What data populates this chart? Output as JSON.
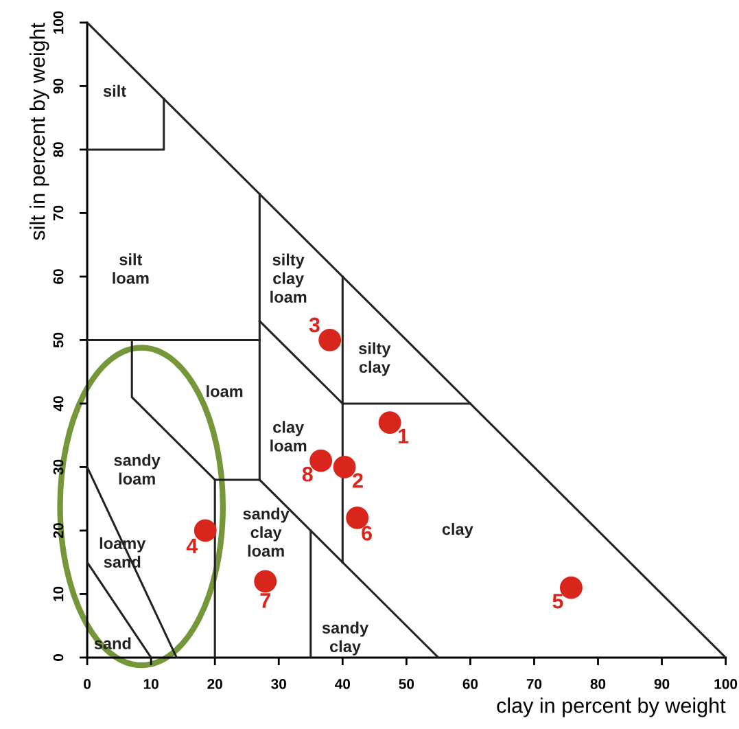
{
  "chart_data": {
    "type": "scatter",
    "xlabel": "clay in percent by weight",
    "ylabel": "silt in percent by weight",
    "xlim": [
      0,
      100
    ],
    "ylim": [
      0,
      100
    ],
    "xticks": [
      0,
      10,
      20,
      30,
      40,
      50,
      60,
      70,
      80,
      90,
      100
    ],
    "yticks": [
      0,
      10,
      20,
      30,
      40,
      50,
      60,
      70,
      80,
      90,
      100
    ],
    "grid": false,
    "legend": false,
    "marker": "circle",
    "series": [
      {
        "color": "#d9261c",
        "x": [
          47.4,
          40.3,
          38,
          18.5,
          75.8,
          42.3,
          27.9,
          36.6
        ],
        "values": [
          37,
          30,
          50,
          20,
          11,
          22,
          12,
          31
        ]
      },
      {
        "type": "line",
        "marker": "none",
        "color": "#222222",
        "x": [
          0,
          100
        ],
        "values": [
          100,
          0
        ]
      },
      {
        "type": "line",
        "marker": "none",
        "color": "#222222",
        "x": [
          0,
          12,
          12
        ],
        "values": [
          80,
          80,
          88
        ]
      },
      {
        "type": "line",
        "marker": "none",
        "color": "#222222",
        "x": [
          0,
          27
        ],
        "values": [
          50,
          50
        ]
      },
      {
        "type": "line",
        "marker": "none",
        "color": "#222222",
        "x": [
          27,
          27
        ],
        "values": [
          28,
          73
        ]
      },
      {
        "type": "line",
        "marker": "none",
        "color": "#222222",
        "x": [
          27,
          40
        ],
        "values": [
          53,
          40
        ]
      },
      {
        "type": "line",
        "marker": "none",
        "color": "#222222",
        "x": [
          40,
          40
        ],
        "values": [
          15,
          60
        ]
      },
      {
        "type": "line",
        "marker": "none",
        "color": "#222222",
        "x": [
          40,
          60
        ],
        "values": [
          40,
          40
        ]
      },
      {
        "type": "line",
        "marker": "none",
        "color": "#222222",
        "x": [
          7,
          7,
          20,
          27
        ],
        "values": [
          50,
          41,
          28,
          28
        ]
      },
      {
        "type": "line",
        "marker": "none",
        "color": "#222222",
        "x": [
          20,
          20
        ],
        "values": [
          0,
          28
        ]
      },
      {
        "type": "line",
        "marker": "none",
        "color": "#222222",
        "x": [
          0,
          14
        ],
        "values": [
          30,
          0
        ]
      },
      {
        "type": "line",
        "marker": "none",
        "color": "#222222",
        "x": [
          0,
          10
        ],
        "values": [
          15,
          0
        ]
      },
      {
        "type": "line",
        "marker": "none",
        "color": "#222222",
        "x": [
          27,
          55
        ],
        "values": [
          28,
          0
        ]
      },
      {
        "type": "line",
        "marker": "none",
        "color": "#222222",
        "x": [
          35,
          35
        ],
        "values": [
          0,
          20
        ]
      }
    ],
    "annotations": [
      {
        "text": "1",
        "x": 47.4,
        "y": 37
      },
      {
        "text": "2",
        "x": 40.3,
        "y": 30
      },
      {
        "text": "3",
        "x": 38,
        "y": 50
      },
      {
        "text": "4",
        "x": 18.5,
        "y": 20
      },
      {
        "text": "5",
        "x": 75.8,
        "y": 11
      },
      {
        "text": "6",
        "x": 42.3,
        "y": 22
      },
      {
        "text": "7",
        "x": 27.9,
        "y": 12
      },
      {
        "text": "8",
        "x": 36.6,
        "y": 31
      },
      "silt",
      "silt\nloam",
      "silty\nclay\nloam",
      "silty\nclay",
      "loam",
      "clay\nloam",
      "sandy\nloam",
      "loamy\nsand",
      "sand",
      "sandy\nclay\nloam",
      "sandy\nclay",
      "clay"
    ]
  }
}
